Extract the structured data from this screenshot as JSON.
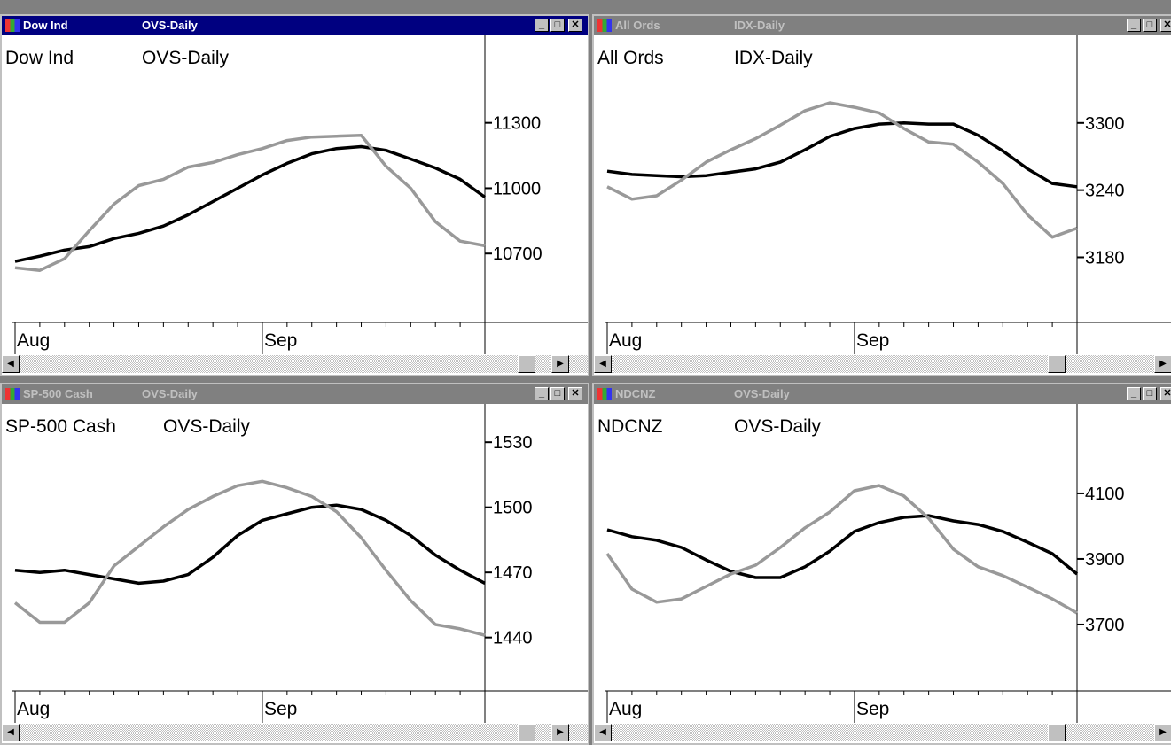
{
  "windows": [
    {
      "title_name": "Dow Ind",
      "title_period": "OVS-Daily",
      "active": true
    },
    {
      "title_name": "All Ords",
      "title_period": "IDX-Daily",
      "active": false
    },
    {
      "title_name": "SP-500 Cash",
      "title_period": "OVS-Daily",
      "active": false
    },
    {
      "title_name": "NDCNZ",
      "title_period": "OVS-Daily",
      "active": false
    }
  ],
  "chart_data": [
    {
      "type": "line",
      "title": "Dow Ind",
      "subtitle": "OVS-Daily",
      "categories": [
        "Aug",
        null,
        null,
        null,
        null,
        null,
        null,
        null,
        null,
        null,
        "Sep",
        null,
        null,
        null,
        null,
        null,
        null,
        null,
        null,
        null
      ],
      "ylim": [
        10400,
        11685
      ],
      "yticks": [
        10700,
        11000,
        11300
      ],
      "series": [
        {
          "color": "#000000",
          "values": [
            10664,
            10688,
            10716,
            10732,
            10769,
            10793,
            10826,
            10878,
            10939,
            11000,
            11061,
            11114,
            11158,
            11182,
            11191,
            11174,
            11134,
            11093,
            11041,
            10959
          ]
        },
        {
          "color": "#999999",
          "values": [
            10635,
            10623,
            10676,
            10805,
            10927,
            11012,
            11041,
            11097,
            11118,
            11154,
            11182,
            11219,
            11235,
            11239,
            11243,
            11101,
            11000,
            10846,
            10757,
            10736
          ]
        }
      ]
    },
    {
      "type": "line",
      "title": "All Ords",
      "subtitle": "IDX-Daily",
      "categories": [
        "Aug",
        null,
        null,
        null,
        null,
        null,
        null,
        null,
        null,
        null,
        "Sep",
        null,
        null,
        null,
        null,
        null,
        null,
        null,
        null,
        null
      ],
      "ylim": [
        3125,
        3375
      ],
      "yticks": [
        3180,
        3240,
        3300
      ],
      "series": [
        {
          "color": "#000000",
          "values": [
            3257,
            3254,
            3253,
            3252,
            3253,
            3256,
            3259,
            3265,
            3276,
            3288,
            3295,
            3299,
            3300,
            3299,
            3299,
            3289,
            3275,
            3259,
            3246,
            3243
          ]
        },
        {
          "color": "#999999",
          "values": [
            3243,
            3232,
            3235,
            3249,
            3265,
            3276,
            3286,
            3298,
            3311,
            3318,
            3314,
            3309,
            3295,
            3283,
            3281,
            3265,
            3246,
            3218,
            3198,
            3206
          ]
        }
      ]
    },
    {
      "type": "line",
      "title": "SP-500 Cash",
      "subtitle": "OVS-Daily",
      "categories": [
        "Aug",
        null,
        null,
        null,
        null,
        null,
        null,
        null,
        null,
        null,
        "Sep",
        null,
        null,
        null,
        null,
        null,
        null,
        null,
        null,
        null
      ],
      "ylim": [
        1417,
        1546
      ],
      "yticks": [
        1440,
        1470,
        1500,
        1530
      ],
      "series": [
        {
          "color": "#000000",
          "values": [
            1471,
            1470,
            1471,
            1469,
            1467,
            1465,
            1466,
            1469,
            1477,
            1487,
            1494,
            1497,
            1500,
            1501,
            1499,
            1494,
            1487,
            1478,
            1471,
            1465
          ]
        },
        {
          "color": "#999999",
          "values": [
            1456,
            1447,
            1447,
            1456,
            1473,
            1482,
            1491,
            1499,
            1505,
            1510,
            1512,
            1509,
            1505,
            1498,
            1486,
            1471,
            1457,
            1446,
            1444,
            1441
          ]
        }
      ]
    },
    {
      "type": "line",
      "title": "NDCNZ",
      "subtitle": "OVS-Daily",
      "categories": [
        "Aug",
        null,
        null,
        null,
        null,
        null,
        null,
        null,
        null,
        null,
        "Sep",
        null,
        null,
        null,
        null,
        null,
        null,
        null,
        null,
        null
      ],
      "ylim": [
        3508,
        4362
      ],
      "yticks": [
        3700,
        3900,
        4100
      ],
      "series": [
        {
          "color": "#000000",
          "values": [
            3989,
            3968,
            3957,
            3935,
            3897,
            3862,
            3843,
            3843,
            3876,
            3924,
            3984,
            4011,
            4027,
            4032,
            4016,
            4005,
            3984,
            3951,
            3916,
            3854
          ]
        },
        {
          "color": "#999999",
          "values": [
            3916,
            3808,
            3768,
            3778,
            3816,
            3854,
            3881,
            3935,
            3995,
            4043,
            4108,
            4124,
            4092,
            4024,
            3930,
            3876,
            3849,
            3814,
            3778,
            3735
          ]
        }
      ]
    }
  ]
}
